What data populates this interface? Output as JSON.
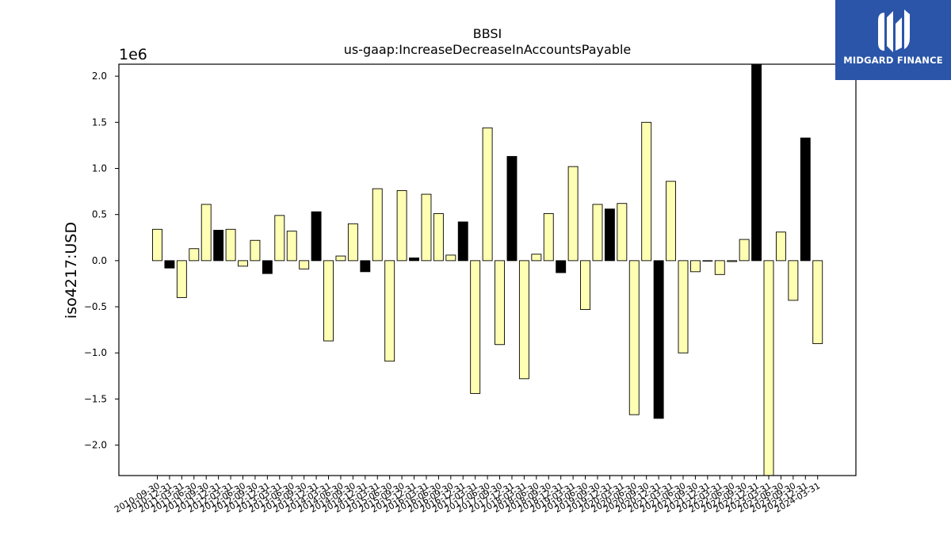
{
  "chart_data": {
    "type": "bar",
    "title": "BBSI",
    "subtitle": "us-gaap:IncreaseDecreaseInAccountsPayable",
    "ylabel": "iso4217:USD",
    "xlabel": "",
    "y_offset_text": "1e6",
    "y_scale": 1000000,
    "ylim": [
      -2330000,
      2130000
    ],
    "yticks": [
      -2.0,
      -1.5,
      -1.0,
      -0.5,
      0.0,
      0.5,
      1.0,
      1.5,
      2.0
    ],
    "ytick_labels": [
      "−2.0",
      "−1.5",
      "−1.0",
      "−0.5",
      "0.0",
      "0.5",
      "1.0",
      "1.5",
      "2.0"
    ],
    "grid": false,
    "legend": "none",
    "colors": {
      "quarter": "#ffffb3",
      "fiscal_year": "#000000",
      "edge": "#000000"
    },
    "categories": [
      "2010-09-30",
      "2010-12-31",
      "2011-03-31",
      "2011-06-30",
      "2011-09-30",
      "2011-12-31",
      "2012-03-31",
      "2012-06-30",
      "2012-09-30",
      "2012-12-31",
      "2013-03-31",
      "2013-06-30",
      "2013-09-30",
      "2013-12-31",
      "2014-03-31",
      "2014-06-30",
      "2014-09-30",
      "2014-12-31",
      "2015-03-31",
      "2015-06-30",
      "2015-09-30",
      "2015-12-31",
      "2016-03-31",
      "2016-06-30",
      "2016-09-30",
      "2016-12-31",
      "2017-03-31",
      "2017-06-30",
      "2017-09-30",
      "2017-12-31",
      "2018-03-31",
      "2018-06-30",
      "2018-09-30",
      "2018-12-31",
      "2019-03-31",
      "2019-06-30",
      "2019-09-30",
      "2019-12-31",
      "2020-03-31",
      "2020-06-30",
      "2020-09-30",
      "2020-12-31",
      "2021-03-31",
      "2021-06-30",
      "2021-09-30",
      "2021-12-31",
      "2022-03-31",
      "2022-06-30",
      "2022-09-30",
      "2022-12-31",
      "2023-03-31",
      "2023-06-30",
      "2023-09-30",
      "2023-12-31",
      "2024-03-31"
    ],
    "values": [
      340000,
      -80000,
      -400000,
      130000,
      610000,
      330000,
      340000,
      -60000,
      220000,
      -140000,
      490000,
      320000,
      -90000,
      530000,
      -870000,
      50000,
      400000,
      -120000,
      780000,
      -1090000,
      760000,
      30000,
      720000,
      510000,
      60000,
      420000,
      -1440000,
      1440000,
      -910000,
      1130000,
      -1280000,
      70000,
      510000,
      -130000,
      1020000,
      -530000,
      610000,
      560000,
      620000,
      -1670000,
      1500000,
      -1710000,
      860000,
      -1000000,
      -120000,
      0,
      -150000,
      -10000,
      230000,
      2130000,
      -2330000,
      310000,
      -430000,
      1330000,
      -900000
    ],
    "bar_kind": [
      "q",
      "y",
      "q",
      "q",
      "q",
      "y",
      "q",
      "q",
      "q",
      "y",
      "q",
      "q",
      "q",
      "y",
      "q",
      "q",
      "q",
      "y",
      "q",
      "q",
      "q",
      "y",
      "q",
      "q",
      "q",
      "y",
      "q",
      "q",
      "q",
      "y",
      "q",
      "q",
      "q",
      "y",
      "q",
      "q",
      "q",
      "y",
      "q",
      "q",
      "q",
      "y",
      "q",
      "q",
      "q",
      "y",
      "q",
      "q",
      "q",
      "y",
      "q",
      "q",
      "q",
      "y",
      "q"
    ]
  },
  "logo": {
    "text": "MIDGARD FINANCE",
    "icon": "midgard-logo-icon",
    "background": "#2a55a8"
  }
}
